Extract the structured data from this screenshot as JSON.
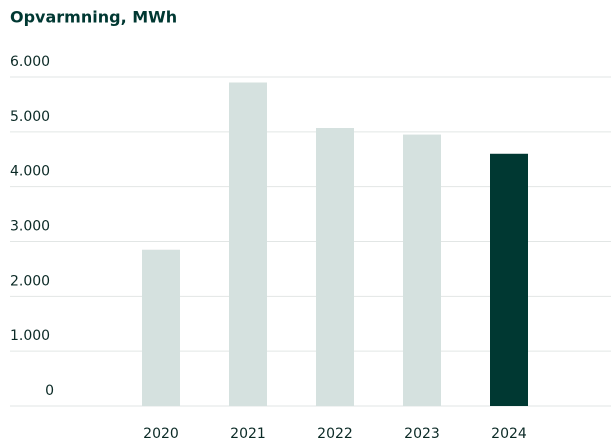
{
  "chart_data": {
    "type": "bar",
    "title": "Opvarmning, MWh",
    "categories": [
      "2020",
      "2021",
      "2022",
      "2023",
      "2024"
    ],
    "values": [
      2850,
      5900,
      5070,
      4950,
      4600
    ],
    "colors": [
      "#d5e1df",
      "#d5e1df",
      "#d5e1df",
      "#d5e1df",
      "#003832"
    ],
    "ylim": [
      0,
      6000
    ],
    "yticks": [
      0,
      {
        "value": 1000,
        "label": "1.000"
      },
      {
        "value": 2000,
        "label": "2.000"
      },
      {
        "value": 3000,
        "label": "3.000"
      },
      {
        "value": 4000,
        "label": "4.000"
      },
      {
        "value": 5000,
        "label": "5.000"
      },
      {
        "value": 6000,
        "label": "6.000"
      }
    ],
    "grid": true
  }
}
